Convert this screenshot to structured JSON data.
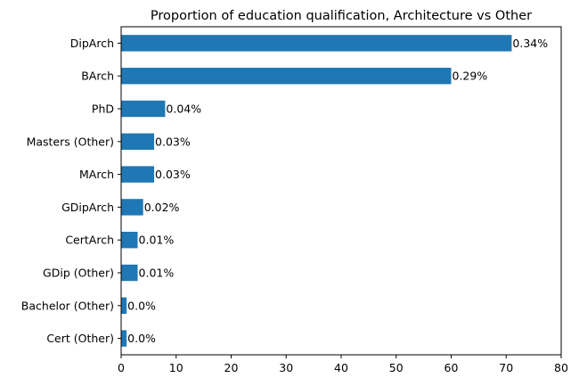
{
  "chart_data": {
    "type": "bar",
    "orientation": "horizontal",
    "title": "Proportion of education qualification, Architecture vs Other",
    "xlabel": "",
    "ylabel": "",
    "categories": [
      "DipArch",
      "BArch",
      "PhD",
      "Masters (Other)",
      "MArch",
      "GDipArch",
      "CertArch",
      "GDip (Other)",
      "Bachelor (Other)",
      "Cert (Other)"
    ],
    "values": [
      71,
      60,
      8,
      6,
      6,
      4,
      3,
      3,
      1,
      1
    ],
    "data_labels": [
      "0.34%",
      "0.29%",
      "0.04%",
      "0.03%",
      "0.03%",
      "0.02%",
      "0.01%",
      "0.01%",
      "0.0%",
      "0.0%"
    ],
    "xlim": [
      0,
      80
    ],
    "xticks": [
      0,
      10,
      20,
      30,
      40,
      50,
      60,
      70,
      80
    ],
    "grid": false,
    "legend": "none",
    "bar_color": "#1f77b4"
  }
}
